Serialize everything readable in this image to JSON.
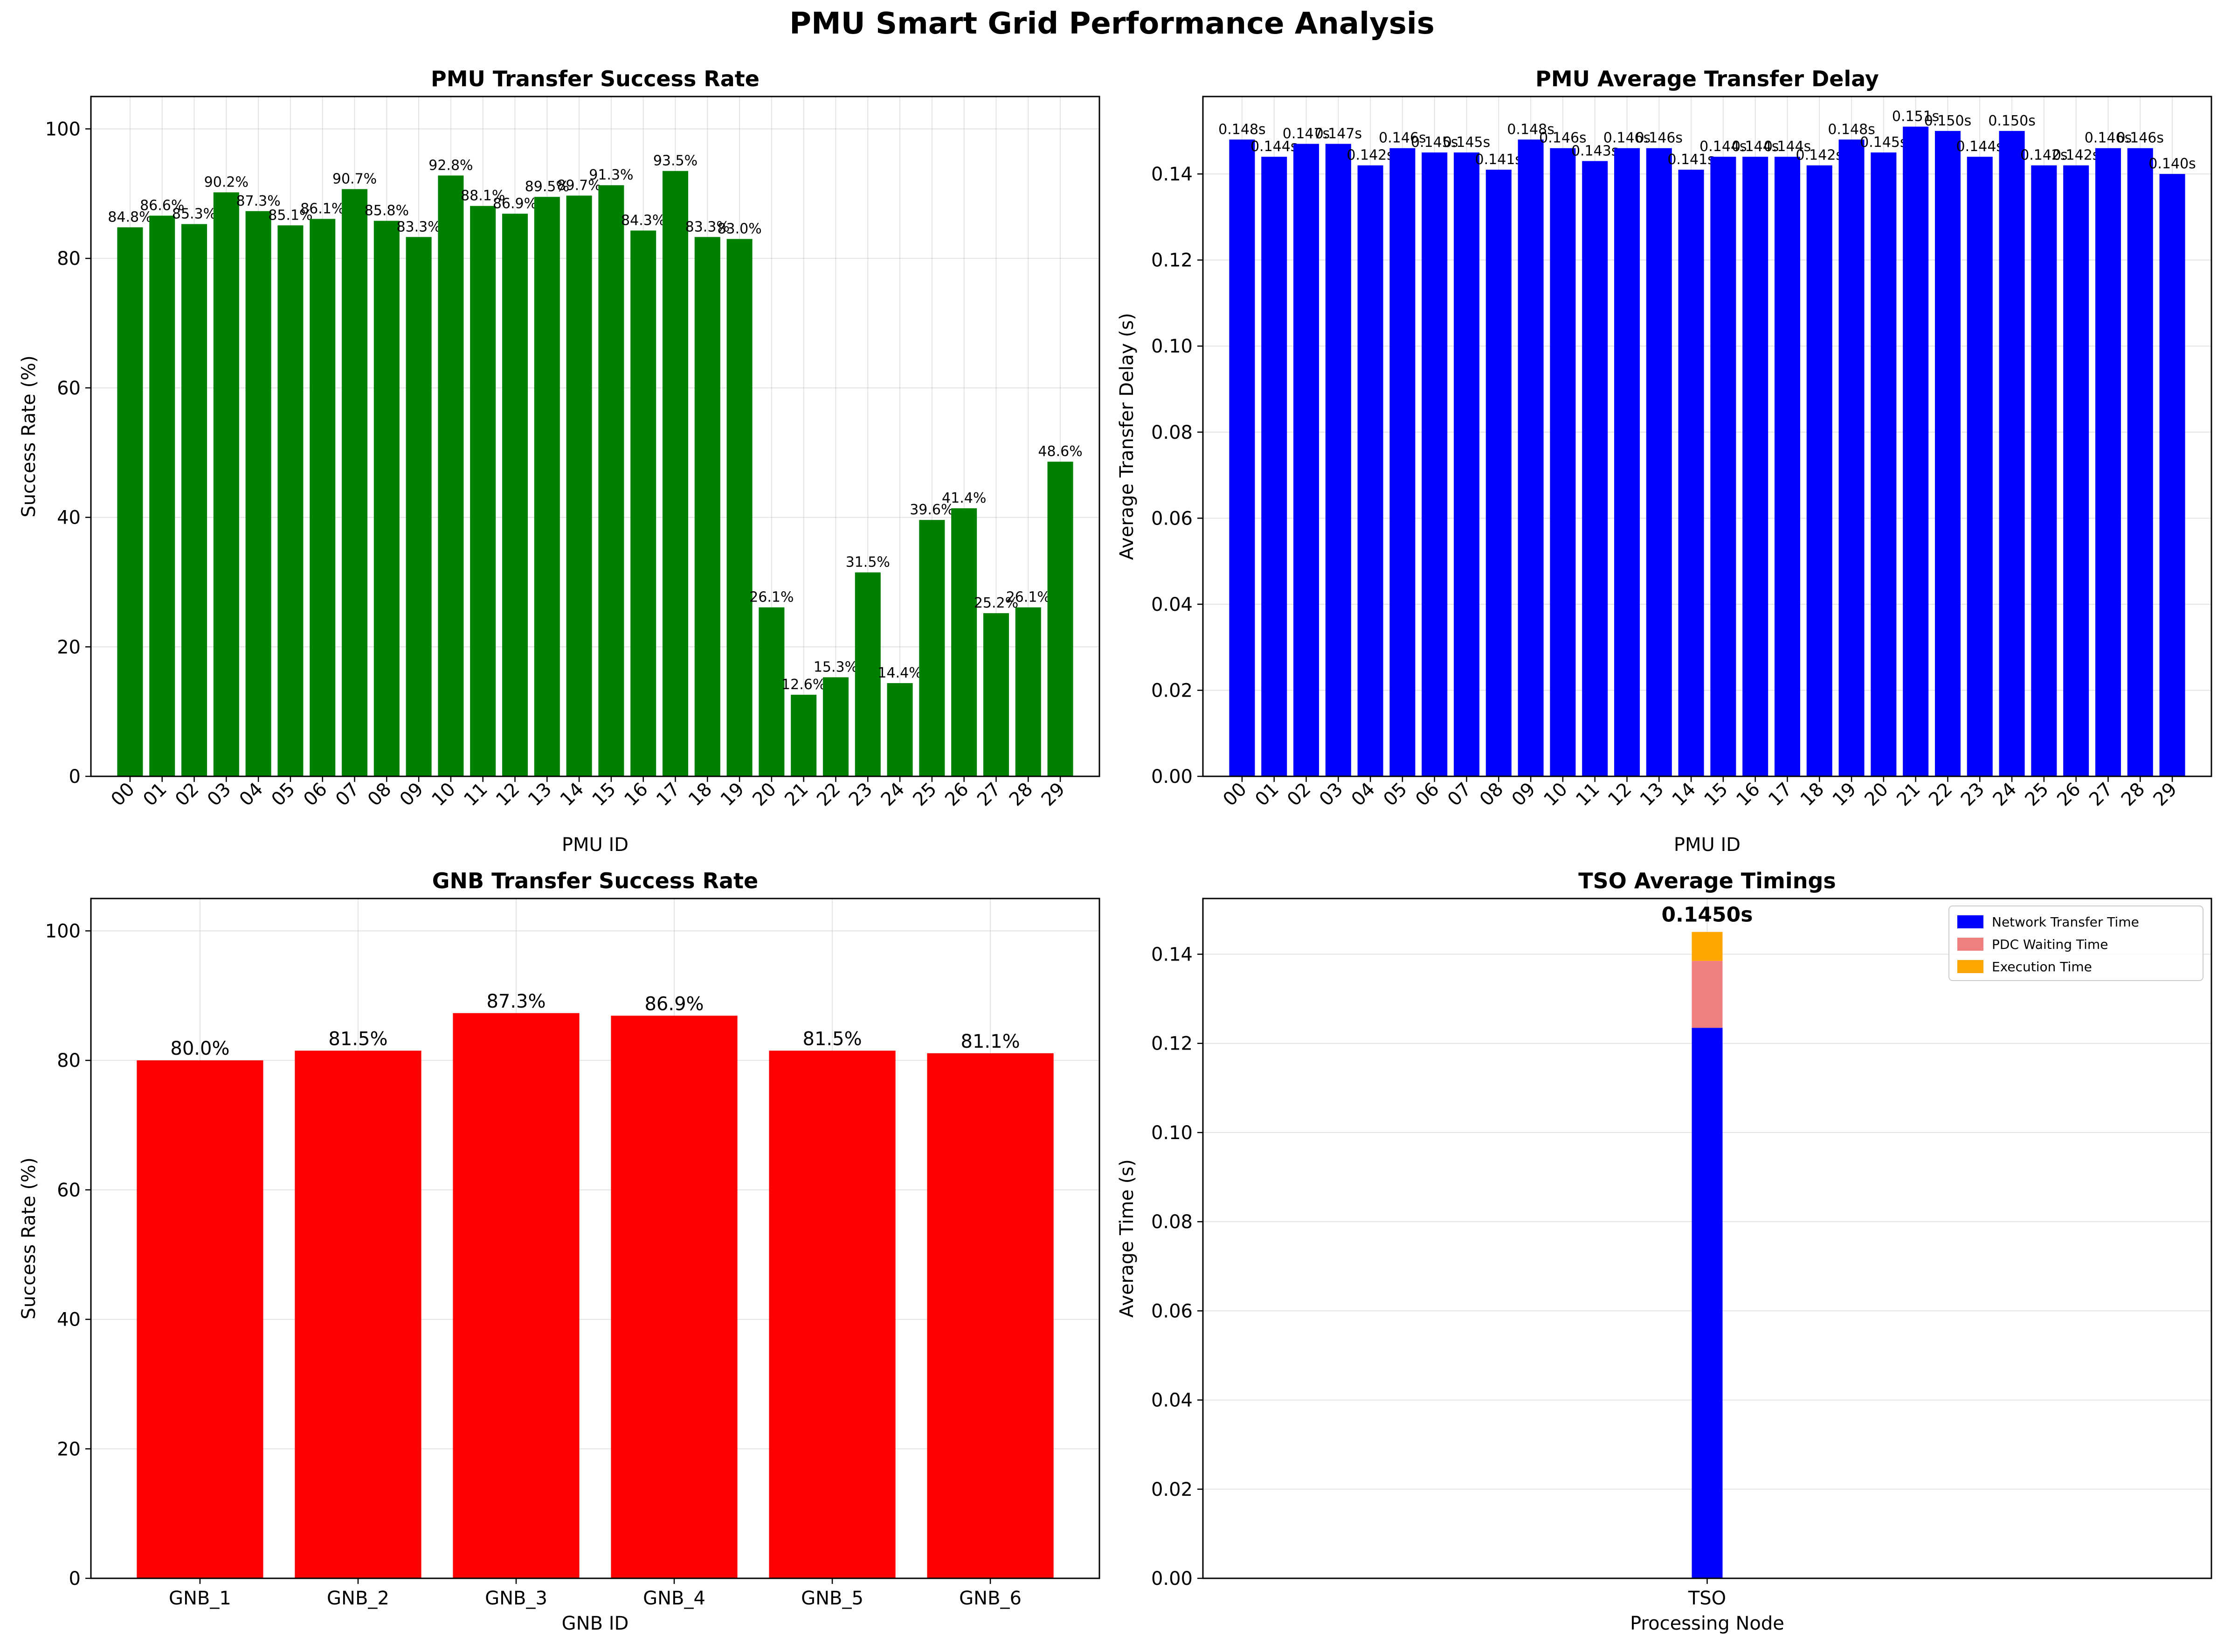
{
  "figure_title": "PMU Smart Grid Performance Analysis",
  "chart_data": [
    {
      "id": "pmu_success",
      "type": "bar",
      "title": "PMU Transfer Success Rate",
      "xlabel": "PMU ID",
      "ylabel": "Success Rate (%)",
      "ylim": [
        0,
        105
      ],
      "yticks": [
        0,
        20,
        40,
        60,
        80,
        100
      ],
      "grid": true,
      "color": "#008000",
      "categories": [
        "00",
        "01",
        "02",
        "03",
        "04",
        "05",
        "06",
        "07",
        "08",
        "09",
        "10",
        "11",
        "12",
        "13",
        "14",
        "15",
        "16",
        "17",
        "18",
        "19",
        "20",
        "21",
        "22",
        "23",
        "24",
        "25",
        "26",
        "27",
        "28",
        "29"
      ],
      "values": [
        84.8,
        86.6,
        85.3,
        90.2,
        87.3,
        85.1,
        86.1,
        90.7,
        85.8,
        83.3,
        92.8,
        88.1,
        86.9,
        89.5,
        89.7,
        91.3,
        84.3,
        93.5,
        83.3,
        83.0,
        26.1,
        12.6,
        15.3,
        31.5,
        14.4,
        39.6,
        41.4,
        25.2,
        26.1,
        48.6
      ],
      "labels": [
        "84.8%",
        "86.6%",
        "85.3%",
        "90.2%",
        "87.3%",
        "85.1%",
        "86.1%",
        "90.7%",
        "85.8%",
        "83.3%",
        "92.8%",
        "88.1%",
        "86.9%",
        "89.5%",
        "89.7%",
        "91.3%",
        "84.3%",
        "93.5%",
        "83.3%",
        "83.0%",
        "26.1%",
        "12.6%",
        "15.3%",
        "31.5%",
        "14.4%",
        "39.6%",
        "41.4%",
        "25.2%",
        "26.1%",
        "48.6%"
      ]
    },
    {
      "id": "pmu_delay",
      "type": "bar",
      "title": "PMU Average Transfer Delay",
      "xlabel": "PMU ID",
      "ylabel": "Average Transfer Delay (s)",
      "ylim": [
        0,
        0.158
      ],
      "yticks": [
        0.0,
        0.02,
        0.04,
        0.06,
        0.08,
        0.1,
        0.12,
        0.14
      ],
      "ytick_labels": [
        "0.00",
        "0.02",
        "0.04",
        "0.06",
        "0.08",
        "0.10",
        "0.12",
        "0.14"
      ],
      "grid": true,
      "color": "#0000ff",
      "categories": [
        "00",
        "01",
        "02",
        "03",
        "04",
        "05",
        "06",
        "07",
        "08",
        "09",
        "10",
        "11",
        "12",
        "13",
        "14",
        "15",
        "16",
        "17",
        "18",
        "19",
        "20",
        "21",
        "22",
        "23",
        "24",
        "25",
        "26",
        "27",
        "28",
        "29"
      ],
      "values": [
        0.148,
        0.144,
        0.147,
        0.147,
        0.142,
        0.146,
        0.145,
        0.145,
        0.141,
        0.148,
        0.146,
        0.143,
        0.146,
        0.146,
        0.141,
        0.144,
        0.144,
        0.144,
        0.142,
        0.148,
        0.145,
        0.151,
        0.15,
        0.144,
        0.15,
        0.142,
        0.142,
        0.146,
        0.146,
        0.14
      ],
      "labels": [
        "0.148s",
        "0.144s",
        "0.147s",
        "0.147s",
        "0.142s",
        "0.146s",
        "0.145s",
        "0.145s",
        "0.141s",
        "0.148s",
        "0.146s",
        "0.143s",
        "0.146s",
        "0.146s",
        "0.141s",
        "0.144s",
        "0.144s",
        "0.144s",
        "0.142s",
        "0.148s",
        "0.145s",
        "0.151s",
        "0.150s",
        "0.144s",
        "0.150s",
        "0.142s",
        "0.142s",
        "0.146s",
        "0.146s",
        "0.140s"
      ]
    },
    {
      "id": "gnb_success",
      "type": "bar",
      "title": "GNB Transfer Success Rate",
      "xlabel": "GNB ID",
      "ylabel": "Success Rate (%)",
      "ylim": [
        0,
        105
      ],
      "yticks": [
        0,
        20,
        40,
        60,
        80,
        100
      ],
      "grid": true,
      "color": "#ff0000",
      "categories": [
        "GNB_1",
        "GNB_2",
        "GNB_3",
        "GNB_4",
        "GNB_5",
        "GNB_6"
      ],
      "values": [
        80.0,
        81.5,
        87.3,
        86.9,
        81.5,
        81.1
      ],
      "labels": [
        "80.0%",
        "81.5%",
        "87.3%",
        "86.9%",
        "81.5%",
        "81.1%"
      ]
    },
    {
      "id": "tso_timings",
      "type": "bar",
      "stacked": true,
      "title": "TSO Average Timings",
      "xlabel": "Processing Node",
      "ylabel": "Average Time (s)",
      "ylim": [
        0,
        0.1525
      ],
      "yticks": [
        0.0,
        0.02,
        0.04,
        0.06,
        0.08,
        0.1,
        0.12,
        0.14
      ],
      "ytick_labels": [
        "0.00",
        "0.02",
        "0.04",
        "0.06",
        "0.08",
        "0.10",
        "0.12",
        "0.14"
      ],
      "grid": true,
      "legend_position": "top-right",
      "categories": [
        "TSO"
      ],
      "series": [
        {
          "name": "Network Transfer Time",
          "color": "#0000ff",
          "values": [
            0.1235
          ]
        },
        {
          "name": "PDC Waiting Time",
          "color": "#f08080",
          "values": [
            0.015
          ]
        },
        {
          "name": "Execution Time",
          "color": "#ffa500",
          "values": [
            0.0065
          ]
        }
      ],
      "total_label": "0.1450s"
    }
  ]
}
